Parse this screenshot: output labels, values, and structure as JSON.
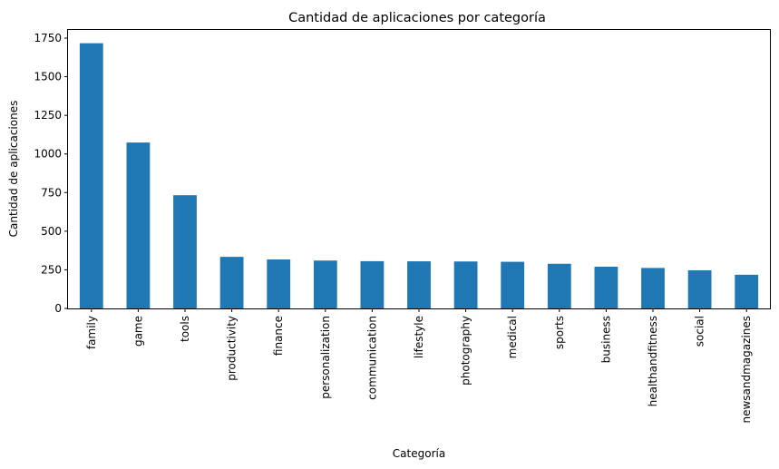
{
  "chart_data": {
    "type": "bar",
    "title": "Cantidad de aplicaciones por categoría",
    "xlabel": "Categoría",
    "ylabel": "Cantidad de aplicaciones",
    "categories": [
      "family",
      "game",
      "tools",
      "productivity",
      "finance",
      "personalization",
      "communication",
      "lifestyle",
      "photography",
      "medical",
      "sports",
      "business",
      "healthandfitness",
      "social",
      "newsandmagazines"
    ],
    "values": [
      1717,
      1074,
      733,
      334,
      317,
      310,
      306,
      305,
      304,
      302,
      289,
      270,
      262,
      247,
      218
    ],
    "ylim": [
      0,
      1803
    ],
    "yticks": [
      0,
      250,
      500,
      750,
      1000,
      1250,
      1500,
      1750
    ],
    "grid": false,
    "legend": "none",
    "bar_color": "#1f77b4"
  }
}
